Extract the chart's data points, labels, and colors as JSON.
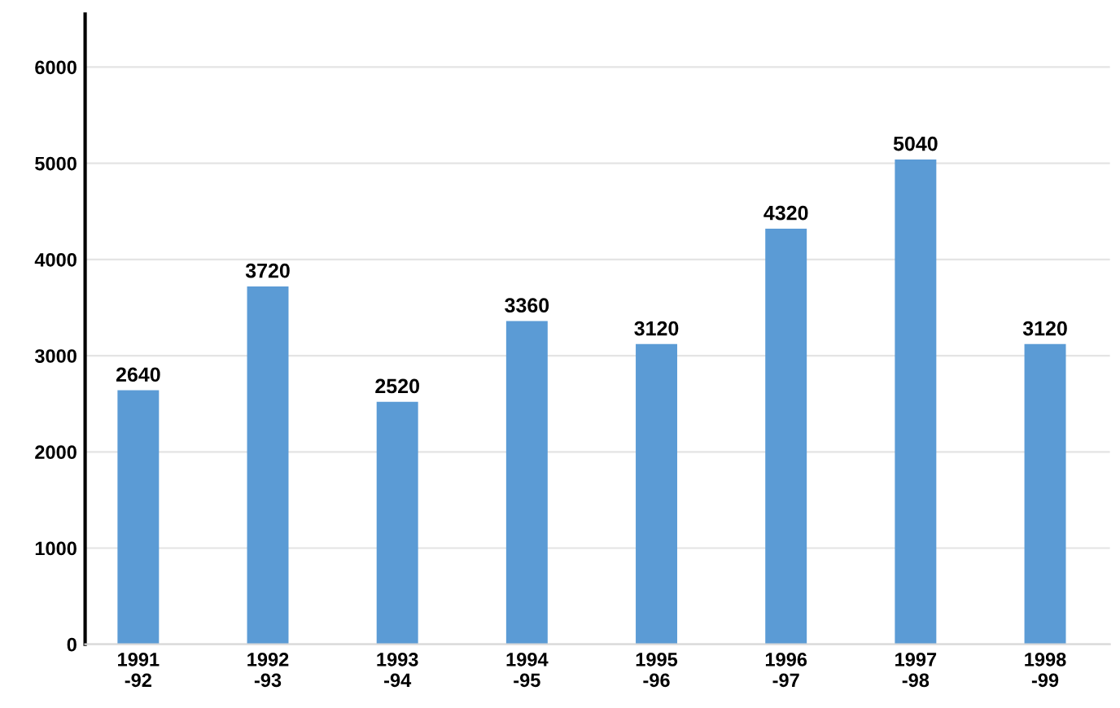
{
  "chart_data": {
    "type": "bar",
    "categories": [
      "1991\n-92",
      "1992\n-93",
      "1993\n-94",
      "1994\n-95",
      "1995\n-96",
      "1996\n-97",
      "1997\n-98",
      "1998\n-99"
    ],
    "values": [
      2640,
      3720,
      2520,
      3360,
      3120,
      4320,
      5040,
      3120
    ],
    "color": "#5b9bd5",
    "ylim": [
      0,
      6550
    ],
    "yticks": [
      0,
      1000,
      2000,
      3000,
      4000,
      5000,
      6000
    ],
    "grid": "y",
    "data_labels": true
  }
}
